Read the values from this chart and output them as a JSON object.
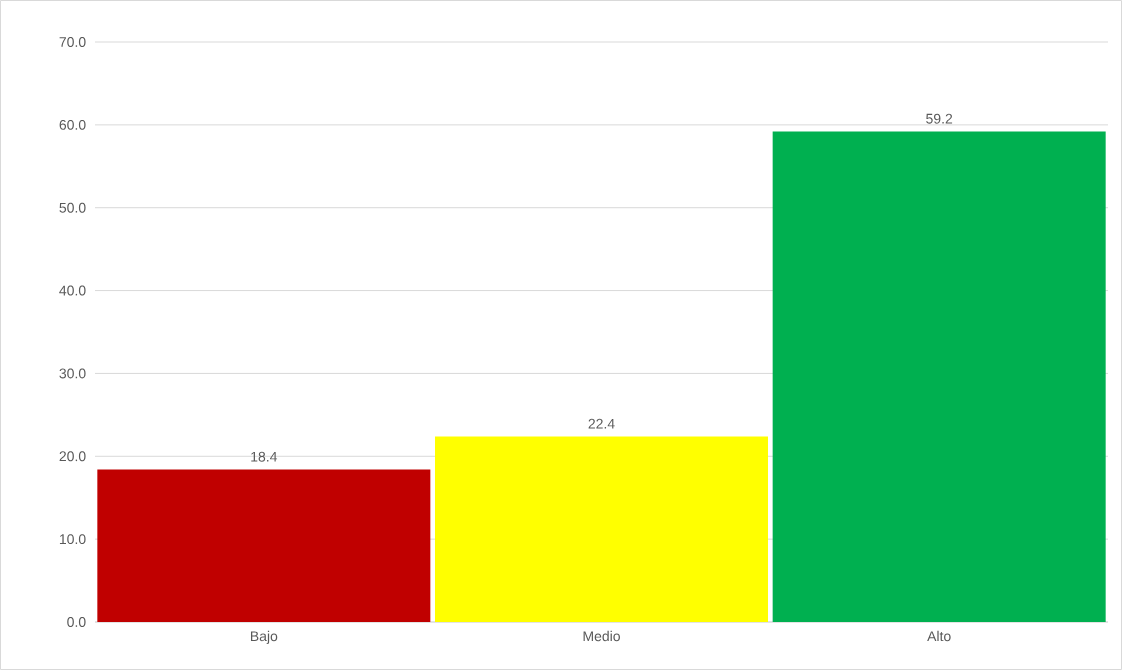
{
  "chart_data": {
    "type": "bar",
    "categories": [
      "Bajo",
      "Medio",
      "Alto"
    ],
    "values": [
      18.4,
      22.4,
      59.2
    ],
    "colors": [
      "#c00000",
      "#ffff00",
      "#00b050"
    ],
    "ylim": [
      0,
      70
    ],
    "yticks": [
      {
        "value": 0,
        "label": "0.0"
      },
      {
        "value": 10,
        "label": "10.0"
      },
      {
        "value": 20,
        "label": "20.0"
      },
      {
        "value": 30,
        "label": "30.0"
      },
      {
        "value": 40,
        "label": "40.0"
      },
      {
        "value": 50,
        "label": "50.0"
      },
      {
        "value": 60,
        "label": "60.0"
      },
      {
        "value": 70,
        "label": "70.0"
      }
    ],
    "grid": "y",
    "data_labels": true
  }
}
